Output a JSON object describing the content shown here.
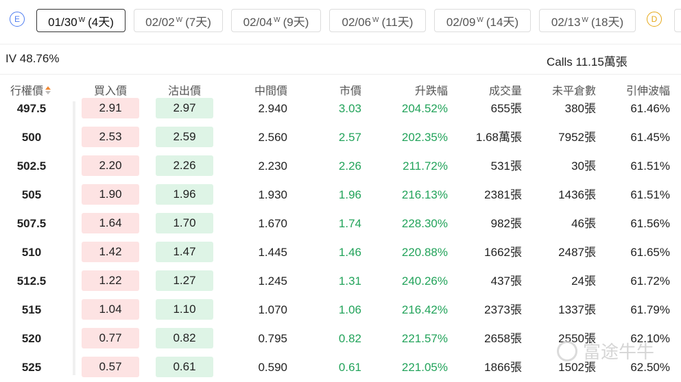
{
  "expiry_tabs": {
    "e_badge": "E",
    "d_badge": "D",
    "tabs": [
      {
        "date": "01/30",
        "type": "W",
        "days": "(4天)",
        "active": true
      },
      {
        "date": "02/02",
        "type": "W",
        "days": "(7天)",
        "active": false
      },
      {
        "date": "02/04",
        "type": "W",
        "days": "(9天)",
        "active": false
      },
      {
        "date": "02/06",
        "type": "W",
        "days": "(11天)",
        "active": false
      },
      {
        "date": "02/09",
        "type": "W",
        "days": "(14天)",
        "active": false
      },
      {
        "date": "02/13",
        "type": "W",
        "days": "(18天)",
        "active": false
      }
    ]
  },
  "info": {
    "iv": "IV 48.76%",
    "calls": "Calls 11.15萬張"
  },
  "table": {
    "headers": [
      "行權價",
      "買入價",
      "沽出價",
      "中間價",
      "市價",
      "升跌幅",
      "成交量",
      "未平倉數",
      "引伸波幅"
    ],
    "sort_icon": "sort-icon",
    "rows": [
      [
        "497.5",
        "2.91",
        "2.97",
        "2.940",
        "3.03",
        "204.52%",
        "655張",
        "380張",
        "61.46%"
      ],
      [
        "500",
        "2.53",
        "2.59",
        "2.560",
        "2.57",
        "202.35%",
        "1.68萬張",
        "7952張",
        "61.45%"
      ],
      [
        "502.5",
        "2.20",
        "2.26",
        "2.230",
        "2.26",
        "211.72%",
        "531張",
        "30張",
        "61.51%"
      ],
      [
        "505",
        "1.90",
        "1.96",
        "1.930",
        "1.96",
        "216.13%",
        "2381張",
        "1436張",
        "61.51%"
      ],
      [
        "507.5",
        "1.64",
        "1.70",
        "1.670",
        "1.74",
        "228.30%",
        "982張",
        "46張",
        "61.56%"
      ],
      [
        "510",
        "1.42",
        "1.47",
        "1.445",
        "1.46",
        "220.88%",
        "1662張",
        "2487張",
        "61.65%"
      ],
      [
        "512.5",
        "1.22",
        "1.27",
        "1.245",
        "1.31",
        "240.26%",
        "437張",
        "24張",
        "61.72%"
      ],
      [
        "515",
        "1.04",
        "1.10",
        "1.070",
        "1.06",
        "216.42%",
        "2373張",
        "1337張",
        "61.79%"
      ],
      [
        "520",
        "0.77",
        "0.82",
        "0.795",
        "0.82",
        "221.57%",
        "2658張",
        "2550張",
        "62.10%"
      ],
      [
        "525",
        "0.57",
        "0.61",
        "0.590",
        "0.61",
        "221.05%",
        "1866張",
        "1502張",
        "62.50%"
      ]
    ]
  },
  "watermark": "富途牛牛",
  "colors": {
    "bid_bg": "#fde3e3",
    "ask_bg": "#def4e6",
    "up_green": "#22a35a",
    "sort_active": "#f08a35"
  }
}
